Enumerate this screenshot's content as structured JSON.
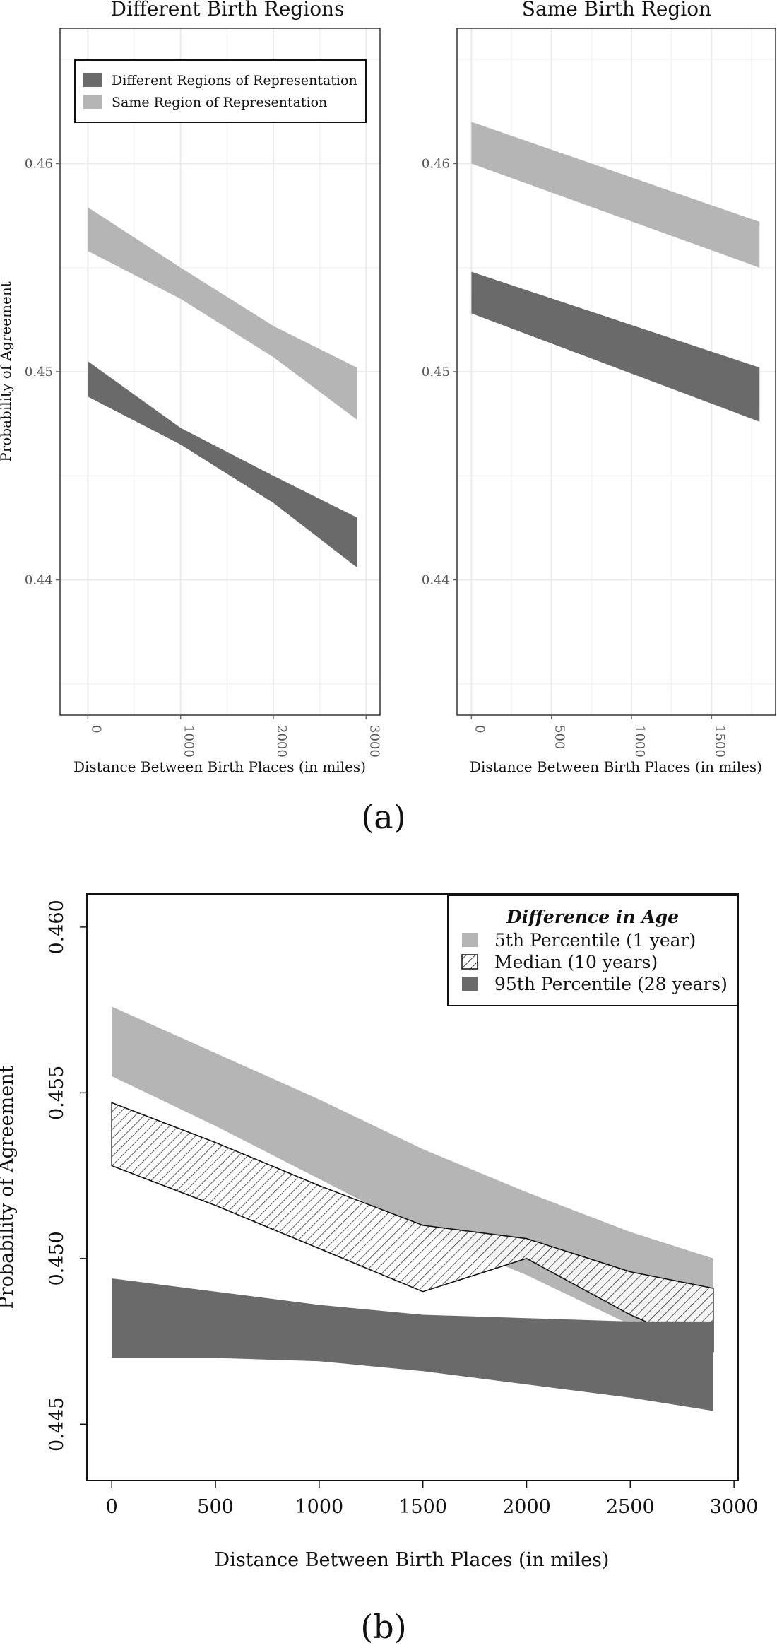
{
  "colors": {
    "dark": "#6a6a6a",
    "light": "#b5b5b5",
    "grid": "#ebebeb",
    "border": "#333333"
  },
  "figure": {
    "caption_a": "(a)",
    "caption_b": "(b)"
  },
  "chart_data": [
    {
      "id": "a-left",
      "type": "area",
      "title": "Different Birth Regions",
      "xlabel": "Distance Between Birth Places (in miles)",
      "ylabel": "Probability of Agreement",
      "xlim": [
        -300,
        3150
      ],
      "ylim": [
        0.4335,
        0.4665
      ],
      "xticks": [
        0,
        1000,
        2000,
        3000
      ],
      "xtick_labels": [
        "0",
        "1000",
        "2000",
        "3000"
      ],
      "yticks": [
        0.44,
        0.45,
        0.46
      ],
      "ytick_labels": [
        "0.44",
        "0.45",
        "0.46"
      ],
      "grid": true,
      "legend_position": "top-left",
      "series": [
        {
          "name": "Different Regions of Representation",
          "color": "dark",
          "x": [
            0,
            1000,
            2000,
            2900
          ],
          "lower": [
            0.4488,
            0.4465,
            0.4437,
            0.4406
          ],
          "upper": [
            0.4505,
            0.4473,
            0.445,
            0.443
          ]
        },
        {
          "name": "Same Region of Representation",
          "color": "light",
          "x": [
            0,
            1000,
            2000,
            2900
          ],
          "lower": [
            0.4558,
            0.4535,
            0.4507,
            0.4477
          ],
          "upper": [
            0.4579,
            0.455,
            0.4522,
            0.4502
          ]
        }
      ]
    },
    {
      "id": "a-right",
      "type": "area",
      "title": "Same Birth Region",
      "xlabel": "Distance Between Birth Places (in miles)",
      "ylabel": "",
      "xlim": [
        -90,
        1900
      ],
      "ylim": [
        0.4335,
        0.4665
      ],
      "xticks": [
        0,
        500,
        1000,
        1500
      ],
      "xtick_labels": [
        "0",
        "500",
        "1000",
        "1500"
      ],
      "yticks": [
        0.44,
        0.45,
        0.46
      ],
      "ytick_labels": [
        "0.44",
        "0.45",
        "0.46"
      ],
      "grid": true,
      "series": [
        {
          "name": "Different Regions of Representation",
          "color": "dark",
          "x": [
            0,
            1800
          ],
          "lower": [
            0.4528,
            0.4476
          ],
          "upper": [
            0.4548,
            0.4502
          ]
        },
        {
          "name": "Same Region of Representation",
          "color": "light",
          "x": [
            0,
            1800
          ],
          "lower": [
            0.46,
            0.455
          ],
          "upper": [
            0.462,
            0.4572
          ]
        }
      ]
    },
    {
      "id": "b",
      "type": "area",
      "title": "",
      "xlabel": "Distance Between Birth Places (in miles)",
      "ylabel": "Probability of Agreement",
      "xlim": [
        -120,
        3020
      ],
      "ylim": [
        0.4433,
        0.461
      ],
      "xticks": [
        0,
        500,
        1000,
        1500,
        2000,
        2500,
        3000
      ],
      "xtick_labels": [
        "0",
        "500",
        "1000",
        "1500",
        "2000",
        "2500",
        "3000"
      ],
      "yticks": [
        0.445,
        0.45,
        0.455,
        0.46
      ],
      "ytick_labels": [
        "0.445",
        "0.450",
        "0.455",
        "0.460"
      ],
      "grid": false,
      "legend_title": "Difference in Age",
      "legend_position": "top-right",
      "series": [
        {
          "name": "5th Percentile (1 year)",
          "color": "light",
          "fill": "solid",
          "x": [
            0,
            500,
            1000,
            1500,
            2000,
            2500,
            2900
          ],
          "lower": [
            0.4555,
            0.454,
            0.4524,
            0.4508,
            0.4495,
            0.448,
            0.4472
          ],
          "upper": [
            0.4576,
            0.4562,
            0.4548,
            0.4533,
            0.452,
            0.4508,
            0.45
          ]
        },
        {
          "name": "Median (10 years)",
          "color": "white",
          "fill": "hatched",
          "x": [
            0,
            500,
            1000,
            1500,
            2000,
            2500,
            2900
          ],
          "lower": [
            0.4528,
            0.4516,
            0.4503,
            0.449,
            0.45,
            0.4483,
            0.4472
          ],
          "upper": [
            0.4547,
            0.4535,
            0.4522,
            0.451,
            0.4506,
            0.4496,
            0.4491
          ]
        },
        {
          "name": "95th Percentile (28 years)",
          "color": "dark",
          "fill": "solid",
          "x": [
            0,
            500,
            1000,
            1500,
            2000,
            2500,
            2900
          ],
          "lower": [
            0.447,
            0.447,
            0.4469,
            0.4466,
            0.4462,
            0.4458,
            0.4454
          ],
          "upper": [
            0.4494,
            0.449,
            0.4486,
            0.4483,
            0.4482,
            0.4481,
            0.4481
          ]
        }
      ]
    }
  ]
}
